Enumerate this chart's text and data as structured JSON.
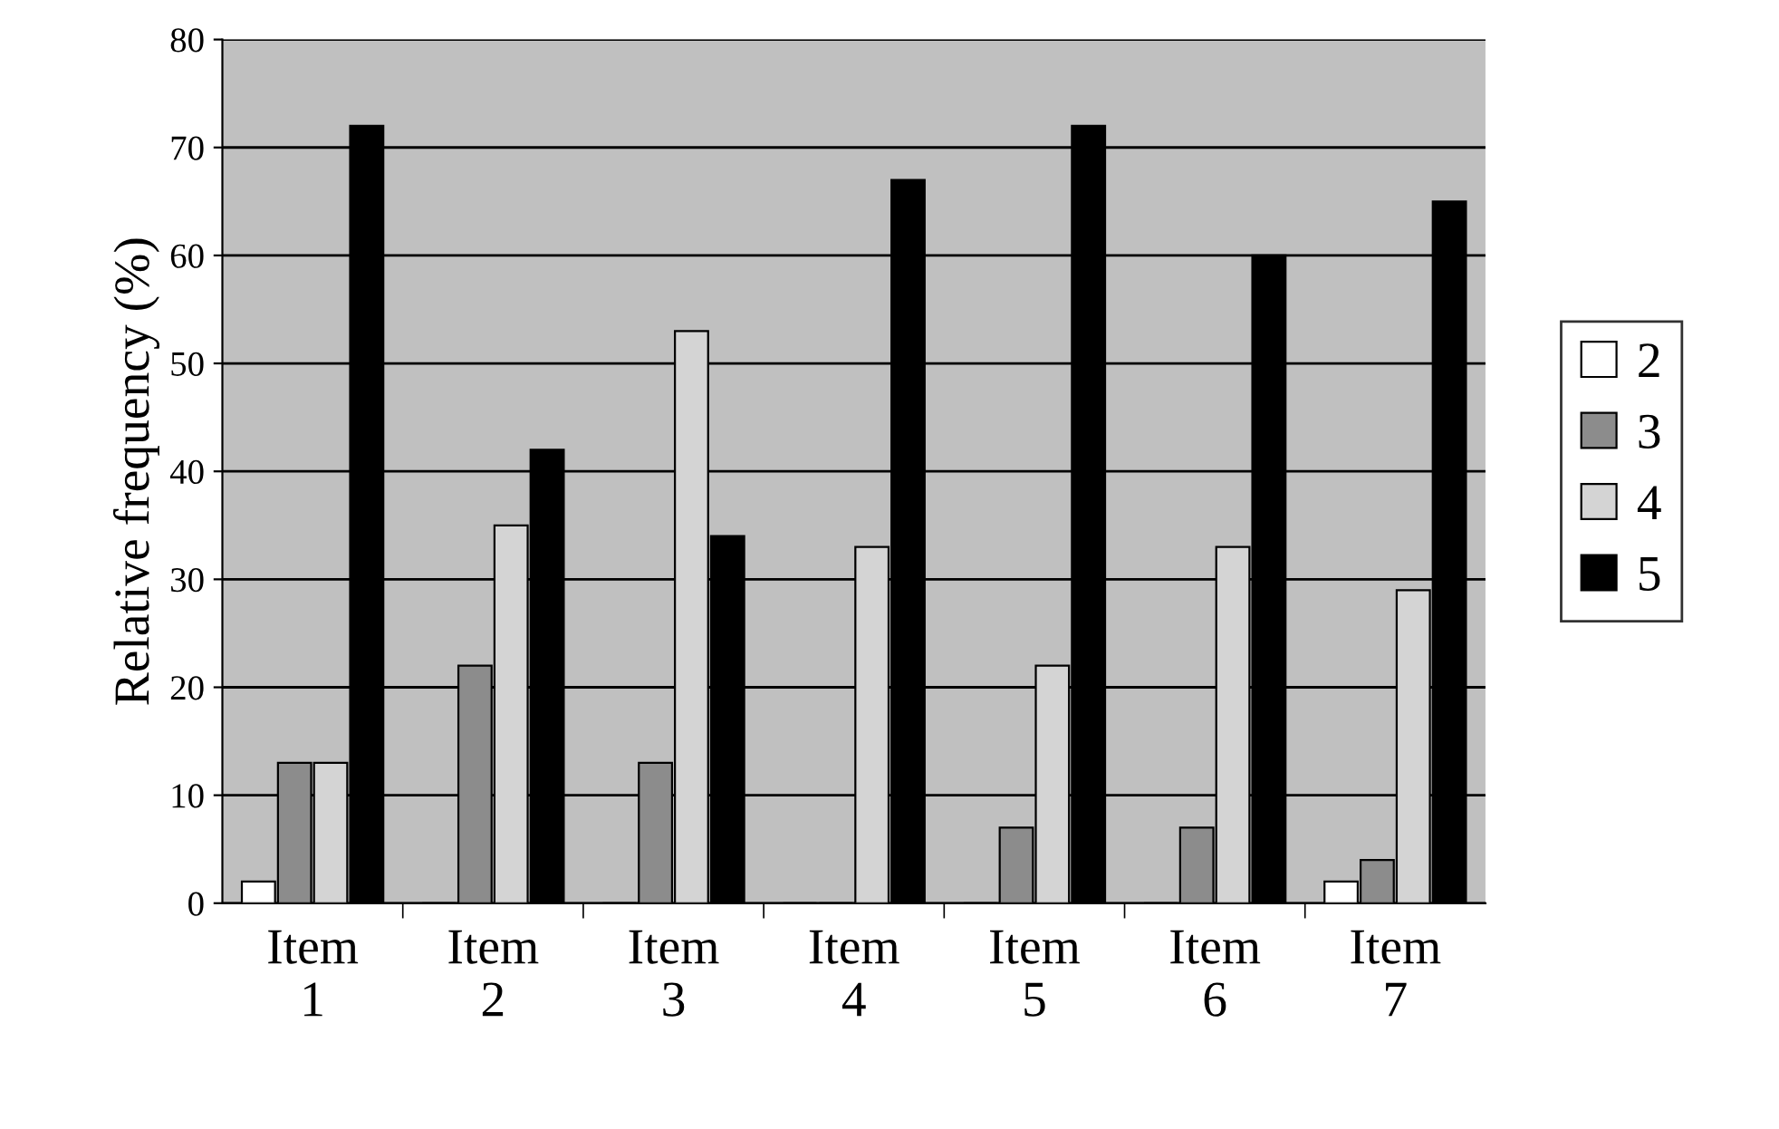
{
  "chart_data": {
    "type": "bar",
    "ylabel": "Relative frequency (%)",
    "categories": [
      "Item\n1",
      "Item\n2",
      "Item\n3",
      "Item\n4",
      "Item\n5",
      "Item\n6",
      "Item\n7"
    ],
    "series": [
      {
        "name": "2",
        "color": "#ffffff",
        "values": [
          2,
          0,
          0,
          0,
          0,
          0,
          2
        ]
      },
      {
        "name": "3",
        "color": "#8c8c8c",
        "values": [
          13,
          22,
          13,
          0,
          7,
          7,
          4
        ]
      },
      {
        "name": "4",
        "color": "#d4d4d4",
        "values": [
          13,
          35,
          53,
          33,
          22,
          33,
          29
        ]
      },
      {
        "name": "5",
        "color": "#000000",
        "values": [
          72,
          42,
          34,
          67,
          72,
          60,
          65
        ]
      }
    ],
    "ylim": [
      0,
      80
    ],
    "yticks": [
      0,
      10,
      20,
      30,
      40,
      50,
      60,
      70,
      80
    ],
    "grid": "y",
    "legend": "right"
  }
}
